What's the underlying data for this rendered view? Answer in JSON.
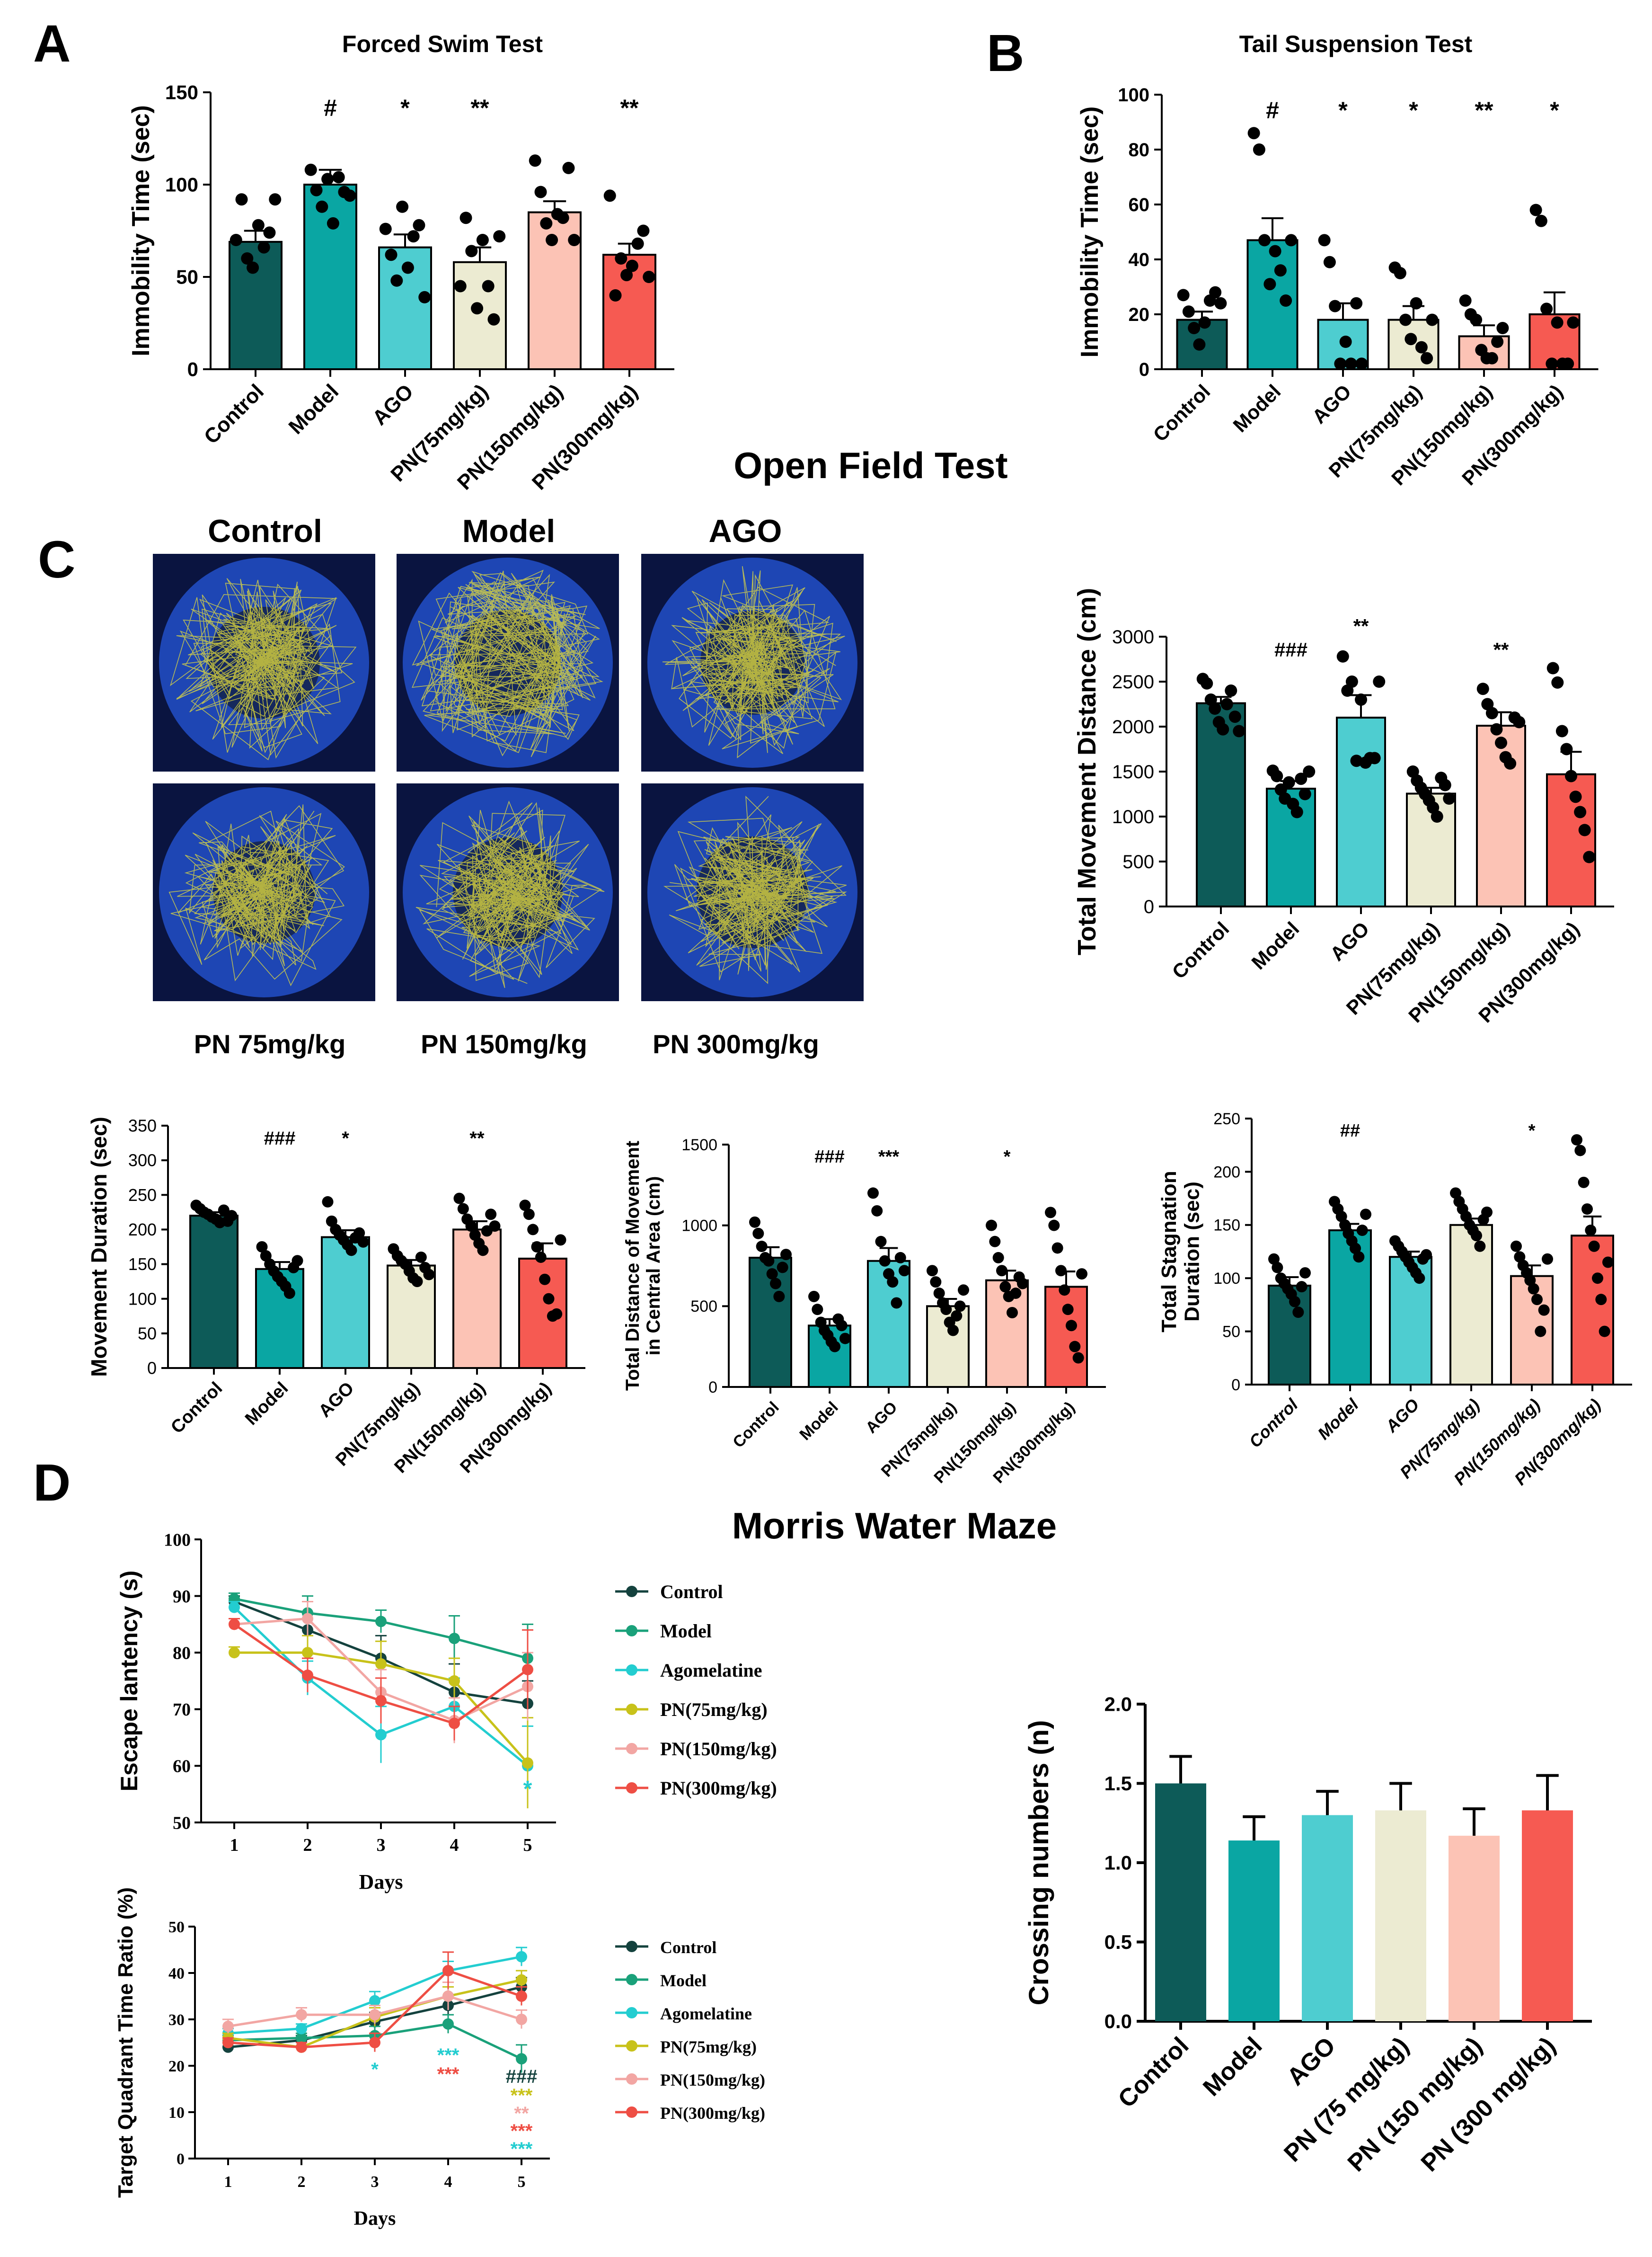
{
  "panels": {
    "A": "A",
    "B": "B",
    "C": "C",
    "D": "D"
  },
  "open_field": {
    "title": "Open Field Test",
    "track_labels_top": [
      "Control",
      "Model",
      "AGO"
    ],
    "track_labels_bottom": [
      "PN 75mg/kg",
      "PN 150mg/kg",
      "PN 300mg/kg"
    ]
  },
  "mwm": {
    "title": "Morris Water Maze"
  },
  "colors": {
    "control": "#0d5b58",
    "model": "#0aa6a3",
    "ago": "#4ecdd0",
    "pn75": "#ecebd2",
    "pn150": "#fcc3b5",
    "pn300": "#f65a52",
    "arena_bg": "#0a1440",
    "arena": "#1e46b4",
    "arena_center": "#15285c",
    "track": "#e8e03a",
    "line_control": "#14423e",
    "line_model": "#1aa17a",
    "line_ago": "#23cdd0",
    "line_pn75": "#c8c21a",
    "line_pn150": "#f2a6a3",
    "line_pn300": "#ee4e44"
  },
  "chart_data": [
    {
      "id": "fst",
      "type": "bar",
      "title": "Forced Swim Test",
      "ylabel": "Immobility Time (sec)",
      "ylim": [
        0,
        150
      ],
      "yticks": [
        0,
        50,
        100,
        150
      ],
      "categories": [
        "Control",
        "Model",
        "AGO",
        "PN(75mg/kg)",
        "PN(150mg/kg)",
        "PN(300mg/kg)"
      ],
      "values": [
        69,
        100,
        66,
        58,
        85,
        62
      ],
      "errors": [
        6,
        8,
        7,
        8,
        6,
        6
      ],
      "signif": [
        "",
        "#",
        "*",
        "**",
        "",
        "**"
      ],
      "points": [
        [
          70,
          92,
          60,
          55,
          78,
          66,
          74,
          92
        ],
        [
          108,
          97,
          88,
          103,
          79,
          104,
          96,
          94
        ],
        [
          76,
          62,
          48,
          88,
          55,
          72,
          78,
          39
        ],
        [
          45,
          82,
          64,
          33,
          70,
          45,
          27,
          72
        ],
        [
          113,
          96,
          79,
          70,
          84,
          82,
          109,
          70
        ],
        [
          94,
          40,
          60,
          51,
          56,
          68,
          75,
          50
        ]
      ]
    },
    {
      "id": "tst",
      "type": "bar",
      "title": "Tail Suspension Test",
      "ylabel": "Immobility Time (sec)",
      "ylim": [
        0,
        100
      ],
      "yticks": [
        0,
        20,
        40,
        60,
        80,
        100
      ],
      "categories": [
        "Control",
        "Model",
        "AGO",
        "PN(75mg/kg)",
        "PN(150mg/kg)",
        "PN(300mg/kg)"
      ],
      "values": [
        18,
        47,
        18,
        18,
        12,
        20
      ],
      "errors": [
        3,
        8,
        6,
        5,
        4,
        8
      ],
      "signif": [
        "",
        "#",
        "*",
        "*",
        "**",
        "*"
      ],
      "points": [
        [
          27,
          21,
          15,
          9,
          17,
          25,
          28,
          24
        ],
        [
          86,
          80,
          47,
          31,
          43,
          36,
          25,
          47
        ],
        [
          47,
          39,
          23,
          2,
          10,
          2,
          24,
          2
        ],
        [
          37,
          35,
          18,
          11,
          24,
          8,
          4,
          18
        ],
        [
          25,
          20,
          18,
          7,
          4,
          4,
          10,
          15
        ],
        [
          58,
          54,
          22,
          2,
          17,
          2,
          2,
          17
        ]
      ]
    },
    {
      "id": "tmd",
      "type": "bar",
      "ylabel": "Total Movement Distance (cm)",
      "ylim": [
        0,
        3000
      ],
      "yticks": [
        0,
        500,
        1000,
        1500,
        2000,
        2500,
        3000
      ],
      "categories": [
        "Control",
        "Model",
        "AGO",
        "PN(75mg/kg)",
        "PN(150mg/kg)",
        "PN(300mg/kg)"
      ],
      "values": [
        2260,
        1310,
        2100,
        1255,
        2010,
        1470
      ],
      "errors": [
        70,
        85,
        250,
        65,
        150,
        250
      ],
      "signif": [
        "",
        "###",
        "**",
        "",
        "**",
        ""
      ],
      "points": [
        [
          2530,
          2480,
          2300,
          2200,
          2050,
          1970,
          2250,
          2400,
          2110,
          1950
        ],
        [
          1510,
          1450,
          1300,
          1200,
          1380,
          1140,
          1050,
          1420,
          1250,
          1500
        ],
        [
          2780,
          2400,
          2500,
          1620,
          2300,
          1600,
          1650,
          1650,
          2500
        ],
        [
          1500,
          1400,
          1320,
          1250,
          1180,
          1100,
          1000,
          1430,
          1350,
          1200
        ],
        [
          2420,
          2250,
          2150,
          1970,
          1820,
          1660,
          1590,
          2100,
          2050
        ],
        [
          2650,
          2490,
          1950,
          1750,
          1450,
          1220,
          1050,
          850,
          550
        ]
      ]
    },
    {
      "id": "md",
      "type": "bar",
      "ylabel": "Movement Duration (sec)",
      "ylim": [
        0,
        350
      ],
      "yticks": [
        0,
        50,
        100,
        150,
        200,
        250,
        300,
        350
      ],
      "categories": [
        "Control",
        "Model",
        "AGO",
        "PN(75mg/kg)",
        "PN(150mg/kg)",
        "PN(300mg/kg)"
      ],
      "values": [
        220,
        143,
        189,
        148,
        200,
        158
      ],
      "errors": [
        5,
        10,
        10,
        8,
        12,
        22
      ],
      "signif": [
        "",
        "###",
        "*",
        "",
        "**",
        ""
      ],
      "points": [
        [
          235,
          230,
          225,
          222,
          218,
          215,
          210,
          228,
          212,
          220
        ],
        [
          175,
          162,
          150,
          140,
          132,
          125,
          118,
          108,
          145,
          155
        ],
        [
          240,
          212,
          200,
          192,
          185,
          178,
          170,
          188,
          195,
          182
        ],
        [
          172,
          162,
          155,
          150,
          140,
          130,
          125,
          160,
          145,
          135
        ],
        [
          245,
          230,
          215,
          205,
          192,
          180,
          170,
          198,
          222,
          205
        ],
        [
          235,
          222,
          200,
          175,
          160,
          128,
          100,
          75,
          78,
          185
        ]
      ]
    },
    {
      "id": "tdc",
      "type": "bar",
      "ylabel": "Total Distance of Movement in Central Area (cm)",
      "ylim": [
        0,
        1500
      ],
      "yticks": [
        0,
        500,
        1000,
        1500
      ],
      "categories": [
        "Control",
        "Model",
        "AGO",
        "PN(75mg/kg)",
        "PN(150mg/kg)",
        "PN(300mg/kg)"
      ],
      "values": [
        800,
        380,
        780,
        500,
        660,
        620
      ],
      "errors": [
        65,
        40,
        80,
        45,
        60,
        95
      ],
      "signif": [
        "",
        "###",
        "***",
        "",
        "*",
        ""
      ],
      "points": [
        [
          1020,
          950,
          870,
          800,
          780,
          700,
          640,
          560,
          740,
          820
        ],
        [
          560,
          480,
          400,
          350,
          320,
          280,
          250,
          420,
          380,
          300
        ],
        [
          1200,
          1090,
          900,
          780,
          700,
          650,
          520,
          800,
          720
        ],
        [
          720,
          650,
          580,
          520,
          480,
          400,
          350,
          440,
          500,
          600
        ],
        [
          1000,
          900,
          800,
          720,
          620,
          560,
          460,
          580,
          680,
          640
        ],
        [
          1080,
          1000,
          860,
          720,
          600,
          480,
          380,
          250,
          180,
          700
        ]
      ]
    },
    {
      "id": "tsd",
      "type": "bar",
      "ylabel": "Total Stagnation Duration (sec)",
      "ylim": [
        0,
        250
      ],
      "yticks": [
        0,
        50,
        100,
        150,
        200,
        250
      ],
      "categories": [
        "Control",
        "Model",
        "AGO",
        "PN(75mg/kg)",
        "PN(150mg/kg)",
        "PN(300mg/kg)"
      ],
      "values": [
        93,
        145,
        120,
        150,
        102,
        140
      ],
      "errors": [
        8,
        6,
        5,
        6,
        10,
        18
      ],
      "signif": [
        "",
        "##",
        "",
        "",
        "*",
        ""
      ],
      "points": [
        [
          118,
          110,
          100,
          95,
          90,
          85,
          78,
          68,
          92,
          105
        ],
        [
          172,
          165,
          158,
          150,
          142,
          135,
          128,
          120,
          145,
          160
        ],
        [
          135,
          130,
          125,
          120,
          115,
          110,
          105,
          100,
          118,
          122
        ],
        [
          180,
          172,
          165,
          158,
          150,
          145,
          140,
          130,
          155,
          162
        ],
        [
          130,
          120,
          112,
          105,
          98,
          90,
          80,
          50,
          70,
          118
        ],
        [
          230,
          220,
          190,
          165,
          145,
          130,
          100,
          80,
          50,
          115
        ]
      ]
    },
    {
      "id": "esc",
      "type": "line",
      "xlabel": "Days",
      "ylabel": "Escape lantency (s)",
      "x": [
        1,
        2,
        3,
        4,
        5
      ],
      "ylim": [
        50,
        100
      ],
      "yticks": [
        50,
        60,
        70,
        80,
        90,
        100
      ],
      "series": [
        {
          "name": "Control",
          "values": [
            89,
            84,
            79,
            73,
            71
          ],
          "errors": [
            1,
            3,
            4,
            5,
            4
          ]
        },
        {
          "name": "Model",
          "values": [
            89.5,
            87,
            85.5,
            82.5,
            79
          ],
          "errors": [
            1,
            3,
            2,
            4,
            6
          ]
        },
        {
          "name": "Agomelatine",
          "values": [
            88,
            75.5,
            65.5,
            70.5,
            60
          ],
          "errors": [
            1,
            3,
            5,
            5,
            7
          ]
        },
        {
          "name": "PN(75mg/kg)",
          "values": [
            80,
            80,
            78,
            75,
            60.5
          ],
          "errors": [
            1,
            3,
            4,
            4,
            8
          ]
        },
        {
          "name": "PN(150mg/kg)",
          "values": [
            85,
            86,
            73,
            68,
            74
          ],
          "errors": [
            1,
            3,
            4,
            4,
            6
          ]
        },
        {
          "name": "PN(300mg/kg)",
          "values": [
            85,
            76,
            71.5,
            67.5,
            77
          ],
          "errors": [
            1,
            3,
            4,
            3,
            7
          ]
        }
      ],
      "annotations": [
        {
          "x": 5,
          "text": "*",
          "series": "Agomelatine"
        }
      ]
    },
    {
      "id": "tqr",
      "type": "line",
      "xlabel": "Days",
      "ylabel": "Target Quadrant Time Ratio (%)",
      "x": [
        1,
        2,
        3,
        4,
        5
      ],
      "ylim": [
        0,
        50
      ],
      "yticks": [
        0,
        10,
        20,
        30,
        40,
        50
      ],
      "series": [
        {
          "name": "Control",
          "values": [
            24,
            25.5,
            29.5,
            33,
            37
          ],
          "errors": [
            1,
            1,
            2,
            2,
            2
          ]
        },
        {
          "name": "Model",
          "values": [
            25.5,
            26,
            26.5,
            29,
            21.5
          ],
          "errors": [
            1,
            1,
            2,
            2,
            3
          ]
        },
        {
          "name": "Agomelatine",
          "values": [
            27,
            28,
            34,
            40.5,
            43.5
          ],
          "errors": [
            1,
            1,
            2,
            2,
            2
          ]
        },
        {
          "name": "PN(75mg/kg)",
          "values": [
            26,
            24,
            30.5,
            35,
            38.5
          ],
          "errors": [
            1,
            1,
            2,
            2,
            2
          ]
        },
        {
          "name": "PN(150mg/kg)",
          "values": [
            28.5,
            31,
            31,
            35,
            30
          ],
          "errors": [
            1.5,
            1.5,
            2,
            3,
            2
          ]
        },
        {
          "name": "PN(300mg/kg)",
          "values": [
            25,
            24,
            25,
            40.5,
            35
          ],
          "errors": [
            1,
            1,
            2,
            4,
            2
          ]
        }
      ],
      "annotations": [
        {
          "x": 3,
          "text": "*",
          "series": "Agomelatine"
        },
        {
          "x": 4,
          "text": "***",
          "series": "Agomelatine"
        },
        {
          "x": 4,
          "text": "***",
          "series": "PN(300mg/kg)"
        },
        {
          "x": 5,
          "text": "###",
          "series": "Control"
        },
        {
          "x": 5,
          "text": "***",
          "series": "PN(75mg/kg)"
        },
        {
          "x": 5,
          "text": "**",
          "series": "PN(150mg/kg)"
        },
        {
          "x": 5,
          "text": "***",
          "series": "PN(300mg/kg)"
        },
        {
          "x": 5,
          "text": "***",
          "series": "Agomelatine"
        }
      ]
    },
    {
      "id": "cross",
      "type": "bar",
      "ylabel": "Crossing numbers (n)",
      "ylim": [
        0,
        2.0
      ],
      "yticks": [
        "0.0",
        "0.5",
        "1.0",
        "1.5",
        "2.0"
      ],
      "categories": [
        "Control",
        "Model",
        "AGO",
        "PN (75 mg/kg)",
        "PN (150 mg/kg)",
        "PN (300 mg/kg)"
      ],
      "values": [
        1.5,
        1.14,
        1.3,
        1.33,
        1.17,
        1.33
      ],
      "errors": [
        0.17,
        0.15,
        0.15,
        0.17,
        0.17,
        0.22
      ]
    }
  ]
}
